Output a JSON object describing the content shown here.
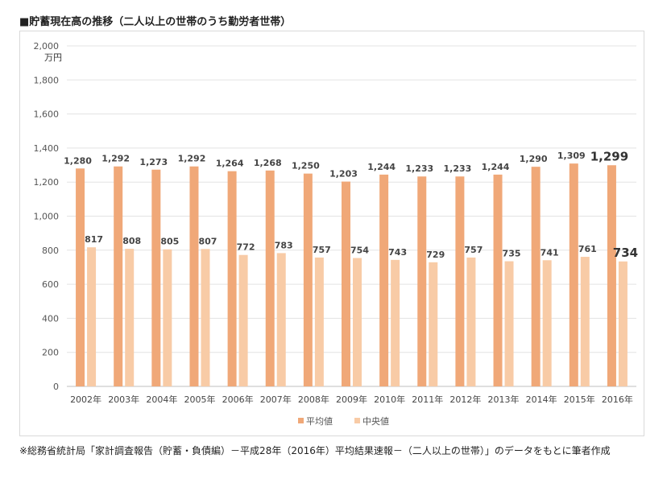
{
  "title": "■貯蓄現在高の推移（二人以上の世帯のうち勤労者世帯）",
  "note": "※総務省統計局「家計調査報告（貯蓄・負債編）－平成28年（2016年）平均結果速報－（二人以上の世帯）」のデータをもとに筆者作成",
  "chart_data": {
    "type": "bar",
    "categories": [
      "2002年",
      "2003年",
      "2004年",
      "2005年",
      "2006年",
      "2007年",
      "2008年",
      "2009年",
      "2010年",
      "2011年",
      "2012年",
      "2013年",
      "2014年",
      "2015年",
      "2016年"
    ],
    "series": [
      {
        "name": "平均値",
        "color": "#f0a878",
        "values": [
          1280,
          1292,
          1273,
          1292,
          1264,
          1268,
          1250,
          1203,
          1244,
          1233,
          1233,
          1244,
          1290,
          1309,
          1299
        ]
      },
      {
        "name": "中央値",
        "color": "#f8cba6",
        "values": [
          817,
          808,
          805,
          807,
          772,
          783,
          757,
          754,
          743,
          729,
          757,
          735,
          741,
          761,
          734
        ]
      }
    ],
    "unit": "万円",
    "ylim": [
      0,
      2000
    ],
    "yticks": [
      "0",
      "200",
      "400",
      "600",
      "800",
      "1,000",
      "1,200",
      "1,400",
      "1,600",
      "1,800",
      "2,000"
    ],
    "grid": true,
    "legend_position": "bottom",
    "highlight_last": true
  }
}
